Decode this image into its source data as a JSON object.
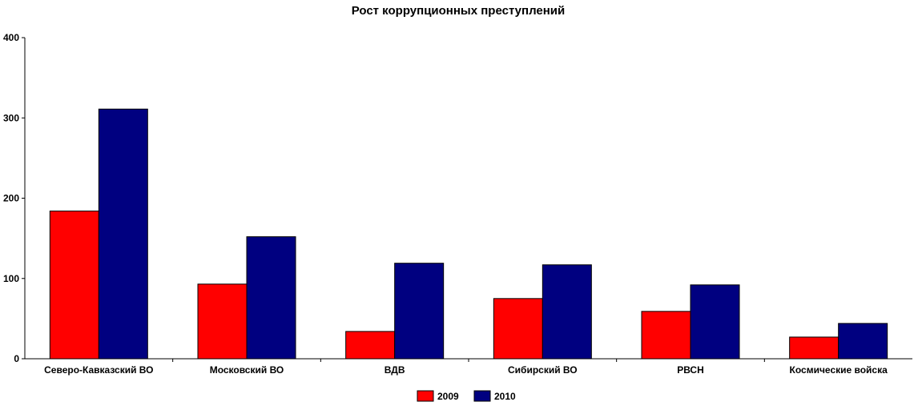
{
  "chart_data": {
    "type": "bar",
    "title": "Рост коррупционных преступлений",
    "xlabel": "",
    "ylabel": "",
    "categories": [
      "Северо-Кавказский ВО",
      "Московский ВО",
      "ВДВ",
      "Сибирский ВО",
      "РВСН",
      "Космические войска"
    ],
    "series": [
      {
        "name": "2009",
        "color": "#ff0000",
        "values": [
          184,
          93,
          34,
          75,
          59,
          27
        ]
      },
      {
        "name": "2010",
        "color": "#000080",
        "values": [
          311,
          152,
          119,
          117,
          92,
          44
        ]
      }
    ],
    "ylim": [
      0,
      400
    ],
    "yticks": [
      "0",
      "100",
      "200",
      "300",
      "400"
    ],
    "grid": false,
    "legend": "bottom-center"
  }
}
